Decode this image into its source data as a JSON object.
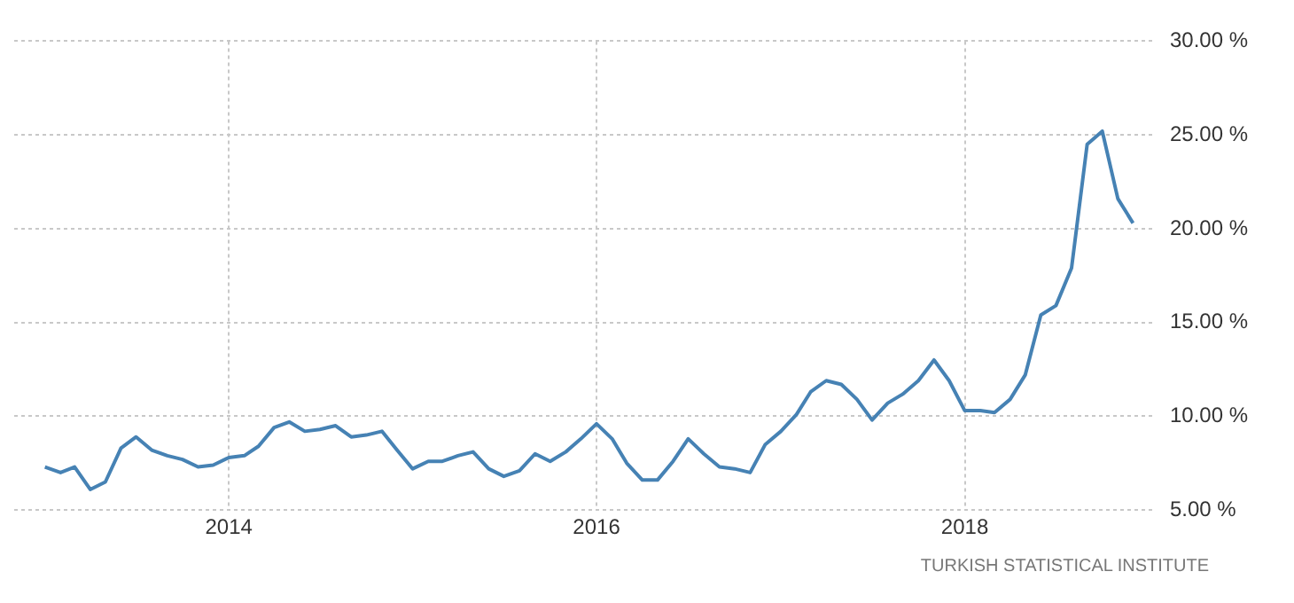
{
  "chart_data": {
    "type": "line",
    "x": [
      "2013-01",
      "2013-02",
      "2013-03",
      "2013-04",
      "2013-05",
      "2013-06",
      "2013-07",
      "2013-08",
      "2013-09",
      "2013-10",
      "2013-11",
      "2013-12",
      "2014-01",
      "2014-02",
      "2014-03",
      "2014-04",
      "2014-05",
      "2014-06",
      "2014-07",
      "2014-08",
      "2014-09",
      "2014-10",
      "2014-11",
      "2014-12",
      "2015-01",
      "2015-02",
      "2015-03",
      "2015-04",
      "2015-05",
      "2015-06",
      "2015-07",
      "2015-08",
      "2015-09",
      "2015-10",
      "2015-11",
      "2015-12",
      "2016-01",
      "2016-02",
      "2016-03",
      "2016-04",
      "2016-05",
      "2016-06",
      "2016-07",
      "2016-08",
      "2016-09",
      "2016-10",
      "2016-11",
      "2016-12",
      "2017-01",
      "2017-02",
      "2017-03",
      "2017-04",
      "2017-05",
      "2017-06",
      "2017-07",
      "2017-08",
      "2017-09",
      "2017-10",
      "2017-11",
      "2017-12",
      "2018-01",
      "2018-02",
      "2018-03",
      "2018-04",
      "2018-05",
      "2018-06",
      "2018-07",
      "2018-08",
      "2018-09",
      "2018-10",
      "2018-11",
      "2018-12"
    ],
    "series": [
      {
        "color": "#4682b4",
        "values": [
          7.3,
          7.0,
          7.3,
          6.1,
          6.5,
          8.3,
          8.9,
          8.2,
          7.9,
          7.7,
          7.3,
          7.4,
          7.8,
          7.9,
          8.4,
          9.4,
          9.7,
          9.2,
          9.3,
          9.5,
          8.9,
          9.0,
          9.2,
          8.2,
          7.2,
          7.6,
          7.6,
          7.9,
          8.1,
          7.2,
          6.8,
          7.1,
          8.0,
          7.6,
          8.1,
          8.8,
          9.6,
          8.8,
          7.5,
          6.6,
          6.6,
          7.6,
          8.8,
          8.0,
          7.3,
          7.2,
          7.0,
          8.5,
          9.2,
          10.1,
          11.3,
          11.9,
          11.7,
          10.9,
          9.8,
          10.7,
          11.2,
          11.9,
          13.0,
          11.9,
          10.3,
          10.3,
          10.2,
          10.9,
          12.2,
          15.4,
          15.9,
          17.9,
          24.5,
          25.2,
          21.6,
          20.3
        ]
      }
    ],
    "xlim": [
      "2012-11-01",
      "2019-01-15"
    ],
    "xticks": [
      {
        "value": "2014",
        "label": "2014"
      },
      {
        "value": "2016",
        "label": "2016"
      },
      {
        "value": "2018",
        "label": "2018"
      }
    ],
    "ylim": [
      5,
      30
    ],
    "yticks": [
      {
        "value": 5,
        "label": "5.00 %"
      },
      {
        "value": 10,
        "label": "10.00 %"
      },
      {
        "value": 15,
        "label": "15.00 %"
      },
      {
        "value": 20,
        "label": "20.00 %"
      },
      {
        "value": 25,
        "label": "25.00 %"
      },
      {
        "value": 30,
        "label": "30.00 %"
      }
    ],
    "grid": true,
    "line_style": "solid",
    "marker": "none",
    "annotations": [
      "TURKISH STATISTICAL INSTITUTE"
    ]
  }
}
